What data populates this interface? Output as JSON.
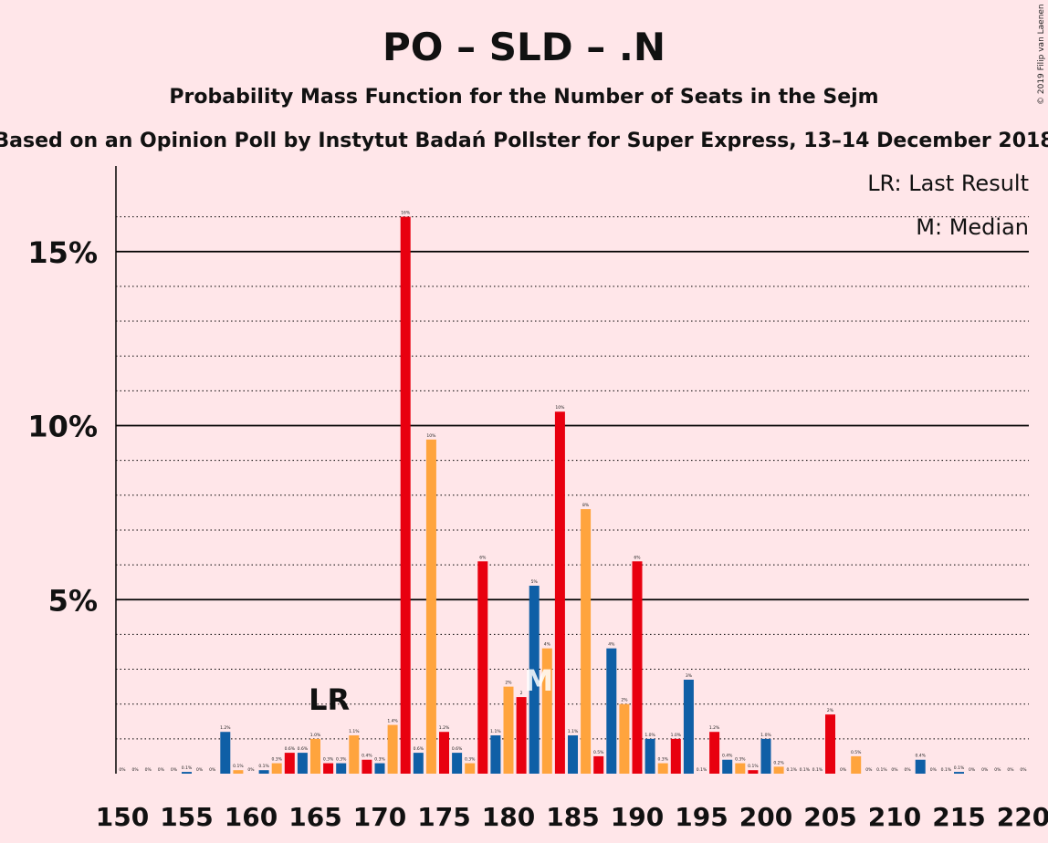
{
  "chart_data": {
    "type": "bar",
    "title": "PO – SLD – .N",
    "subtitle": "Probability Mass Function for the Number of Seats in the Sejm",
    "subtitle2": "Based on an Opinion Poll by Instytut Badań Pollster for Super Express, 13–14 December 2018",
    "copyright": "© 2019 Filip van Laenen",
    "legend": {
      "lr": "LR: Last Result",
      "m": "M: Median"
    },
    "markers": {
      "lr": {
        "text": "LR",
        "seats": 166
      },
      "m": {
        "text": "M",
        "seats": 182
      }
    },
    "x_ticks": [
      "150",
      "155",
      "160",
      "165",
      "170",
      "175",
      "180",
      "185",
      "190",
      "195",
      "200",
      "205",
      "210",
      "215",
      "220"
    ],
    "y_ticks": [
      "5%",
      "10%",
      "15%"
    ],
    "ylim": [
      0,
      17
    ],
    "colors": {
      "blue": "#0F5FA6",
      "orange": "#FFA43D",
      "red": "#E8000F",
      "grid": "#000000",
      "bg": "#FFE6E9"
    },
    "bars": [
      {
        "seats": 150,
        "value": 0,
        "label": "0%",
        "color": "blue"
      },
      {
        "seats": 151,
        "value": 0,
        "label": "0%",
        "color": "blue"
      },
      {
        "seats": 152,
        "value": 0,
        "label": "0%",
        "color": "blue"
      },
      {
        "seats": 153,
        "value": 0,
        "label": "0%",
        "color": "blue"
      },
      {
        "seats": 154,
        "value": 0,
        "label": "0%",
        "color": "blue"
      },
      {
        "seats": 155,
        "value": 0.05,
        "label": "0.1%",
        "color": "blue"
      },
      {
        "seats": 156,
        "value": 0,
        "label": "0%",
        "color": "blue"
      },
      {
        "seats": 157,
        "value": 0,
        "label": "0%",
        "color": "blue"
      },
      {
        "seats": 158,
        "value": 1.2,
        "label": "1.2%",
        "color": "blue"
      },
      {
        "seats": 159,
        "value": 0.1,
        "label": "0.1%",
        "color": "orange"
      },
      {
        "seats": 160,
        "value": 0,
        "label": "0%",
        "color": "blue"
      },
      {
        "seats": 161,
        "value": 0.1,
        "label": "0.1%",
        "color": "blue"
      },
      {
        "seats": 162,
        "value": 0.3,
        "label": "0.3%",
        "color": "orange"
      },
      {
        "seats": 163,
        "value": 0.6,
        "label": "0.6%",
        "color": "red"
      },
      {
        "seats": 164,
        "value": 0.6,
        "label": "0.6%",
        "color": "blue"
      },
      {
        "seats": 165,
        "value": 1.0,
        "label": "1.0%",
        "color": "orange"
      },
      {
        "seats": 166,
        "value": 0.3,
        "label": "0.3%",
        "color": "red"
      },
      {
        "seats": 167,
        "value": 0.3,
        "label": "0.3%",
        "color": "blue"
      },
      {
        "seats": 168,
        "value": 1.1,
        "label": "1.1%",
        "color": "orange"
      },
      {
        "seats": 169,
        "value": 0.4,
        "label": "0.4%",
        "color": "red"
      },
      {
        "seats": 170,
        "value": 0.3,
        "label": "0.3%",
        "color": "blue"
      },
      {
        "seats": 171,
        "value": 1.4,
        "label": "1.4%",
        "color": "orange"
      },
      {
        "seats": 172,
        "value": 16,
        "label": "16%",
        "color": "red"
      },
      {
        "seats": 173,
        "value": 0.6,
        "label": "0.6%",
        "color": "blue"
      },
      {
        "seats": 174,
        "value": 9.6,
        "label": "10%",
        "color": "orange"
      },
      {
        "seats": 175,
        "value": 1.2,
        "label": "1.2%",
        "color": "red"
      },
      {
        "seats": 176,
        "value": 0.6,
        "label": "0.6%",
        "color": "blue"
      },
      {
        "seats": 177,
        "value": 0.3,
        "label": "0.3%",
        "color": "orange"
      },
      {
        "seats": 178,
        "value": 6.1,
        "label": "6%",
        "color": "red"
      },
      {
        "seats": 179,
        "value": 1.1,
        "label": "1.1%",
        "color": "blue"
      },
      {
        "seats": 180,
        "value": 2.5,
        "label": "2%",
        "color": "orange"
      },
      {
        "seats": 181,
        "value": 2.2,
        "label": "2",
        "color": "red"
      },
      {
        "seats": 182,
        "value": 5.4,
        "label": "5%",
        "color": "blue"
      },
      {
        "seats": 183,
        "value": 3.6,
        "label": "4%",
        "color": "orange"
      },
      {
        "seats": 184,
        "value": 10.4,
        "label": "10%",
        "color": "red"
      },
      {
        "seats": 185,
        "value": 1.1,
        "label": "1.1%",
        "color": "blue"
      },
      {
        "seats": 186,
        "value": 7.6,
        "label": "8%",
        "color": "orange"
      },
      {
        "seats": 187,
        "value": 0.5,
        "label": "0.5%",
        "color": "red"
      },
      {
        "seats": 188,
        "value": 3.6,
        "label": "4%",
        "color": "blue"
      },
      {
        "seats": 189,
        "value": 2.0,
        "label": "2%",
        "color": "orange"
      },
      {
        "seats": 190,
        "value": 6.1,
        "label": "6%",
        "color": "red"
      },
      {
        "seats": 191,
        "value": 1.0,
        "label": "1.0%",
        "color": "blue"
      },
      {
        "seats": 192,
        "value": 0.3,
        "label": "0.3%",
        "color": "orange"
      },
      {
        "seats": 193,
        "value": 1.0,
        "label": "1.0%",
        "color": "red"
      },
      {
        "seats": 194,
        "value": 2.7,
        "label": "3%",
        "color": "blue"
      },
      {
        "seats": 195,
        "value": 0,
        "label": "0.1%",
        "color": "orange"
      },
      {
        "seats": 196,
        "value": 1.2,
        "label": "1.2%",
        "color": "red"
      },
      {
        "seats": 197,
        "value": 0.4,
        "label": "0.4%",
        "color": "blue"
      },
      {
        "seats": 198,
        "value": 0.3,
        "label": "0.3%",
        "color": "orange"
      },
      {
        "seats": 199,
        "value": 0.1,
        "label": "0.1%",
        "color": "red"
      },
      {
        "seats": 200,
        "value": 1.0,
        "label": "1.0%",
        "color": "blue"
      },
      {
        "seats": 201,
        "value": 0.2,
        "label": "0.2%",
        "color": "orange"
      },
      {
        "seats": 202,
        "value": 0,
        "label": "0.1%",
        "color": "red"
      },
      {
        "seats": 203,
        "value": 0,
        "label": "0.1%",
        "color": "blue"
      },
      {
        "seats": 204,
        "value": 0,
        "label": "0.1%",
        "color": "orange"
      },
      {
        "seats": 205,
        "value": 1.7,
        "label": "2%",
        "color": "red"
      },
      {
        "seats": 206,
        "value": 0,
        "label": "0%",
        "color": "blue"
      },
      {
        "seats": 207,
        "value": 0.5,
        "label": "0.5%",
        "color": "orange"
      },
      {
        "seats": 208,
        "value": 0,
        "label": "0%",
        "color": "red"
      },
      {
        "seats": 209,
        "value": 0,
        "label": "0.1%",
        "color": "blue"
      },
      {
        "seats": 210,
        "value": 0,
        "label": "0%",
        "color": "orange"
      },
      {
        "seats": 211,
        "value": 0,
        "label": "0%",
        "color": "red"
      },
      {
        "seats": 212,
        "value": 0.4,
        "label": "0.4%",
        "color": "blue"
      },
      {
        "seats": 213,
        "value": 0,
        "label": "0%",
        "color": "orange"
      },
      {
        "seats": 214,
        "value": 0,
        "label": "0.1%",
        "color": "red"
      },
      {
        "seats": 215,
        "value": 0.05,
        "label": "0.1%",
        "color": "blue"
      },
      {
        "seats": 216,
        "value": 0,
        "label": "0%",
        "color": "orange"
      },
      {
        "seats": 217,
        "value": 0,
        "label": "0%",
        "color": "red"
      },
      {
        "seats": 218,
        "value": 0,
        "label": "0%",
        "color": "blue"
      },
      {
        "seats": 219,
        "value": 0,
        "label": "0%",
        "color": "orange"
      },
      {
        "seats": 220,
        "value": 0,
        "label": "0%",
        "color": "red"
      }
    ]
  }
}
